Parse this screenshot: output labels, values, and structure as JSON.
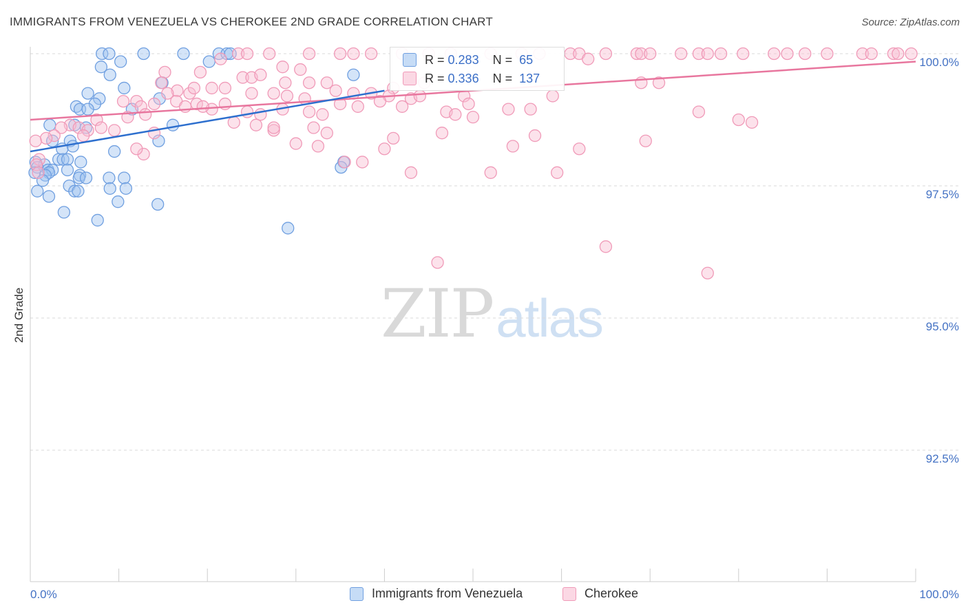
{
  "title": "IMMIGRANTS FROM VENEZUELA VS CHEROKEE 2ND GRADE CORRELATION CHART",
  "source": "Source: ZipAtlas.com",
  "watermark": {
    "zip": "ZIP",
    "atlas": "atlas"
  },
  "legend_stats": {
    "row1": {
      "r_label": "R =",
      "r_value": "0.283",
      "n_label": "N =",
      "n_value": "65"
    },
    "row2": {
      "r_label": "R =",
      "r_value": "0.336",
      "n_label": "N =",
      "n_value": "137"
    }
  },
  "colors": {
    "series1": "#6f9fe0",
    "series1_fill": "rgba(160,196,240,0.45)",
    "series1_line": "#2d6fce",
    "series2": "#f09ab8",
    "series2_fill": "rgba(248,190,210,0.45)",
    "series2_line": "#e8769e",
    "grid": "#d9d9d9",
    "tick": "#4472c4"
  },
  "chart_data": {
    "type": "scatter",
    "title": "IMMIGRANTS FROM VENEZUELA VS CHEROKEE 2ND GRADE CORRELATION CHART",
    "xlabel": "",
    "ylabel": "2nd Grade",
    "xlim": [
      0,
      100
    ],
    "ylim": [
      90.2,
      100.25
    ],
    "x_tick_labels": [
      "0.0%",
      "100.0%"
    ],
    "y_ticks": [
      92.5,
      95.0,
      97.5,
      100.0
    ],
    "y_tick_labels": [
      "92.5%",
      "95.0%",
      "97.5%",
      "100.0%"
    ],
    "grid": true,
    "legend": [
      "Immigrants from Venezuela",
      "Cherokee"
    ],
    "series": [
      {
        "name": "Immigrants from Venezuela",
        "r": 0.283,
        "n": 65,
        "trend": {
          "x": [
            0,
            40
          ],
          "y": [
            98.15,
            99.3
          ]
        },
        "points": [
          [
            8.1,
            100
          ],
          [
            8.9,
            100
          ],
          [
            12.8,
            100
          ],
          [
            17.3,
            100
          ],
          [
            21.3,
            100
          ],
          [
            22.2,
            100
          ],
          [
            22.6,
            100
          ],
          [
            10.2,
            99.85
          ],
          [
            20.2,
            99.85
          ],
          [
            8.0,
            99.75
          ],
          [
            9.0,
            99.6
          ],
          [
            36.5,
            99.6
          ],
          [
            14.9,
            99.45
          ],
          [
            10.6,
            99.35
          ],
          [
            6.5,
            99.25
          ],
          [
            7.8,
            99.15
          ],
          [
            14.6,
            99.15
          ],
          [
            7.3,
            99.05
          ],
          [
            5.2,
            99.0
          ],
          [
            5.6,
            98.95
          ],
          [
            6.5,
            98.95
          ],
          [
            11.5,
            98.95
          ],
          [
            2.2,
            98.65
          ],
          [
            5.0,
            98.65
          ],
          [
            16.1,
            98.65
          ],
          [
            6.3,
            98.6
          ],
          [
            4.5,
            98.35
          ],
          [
            2.5,
            98.35
          ],
          [
            14.5,
            98.35
          ],
          [
            4.8,
            98.25
          ],
          [
            3.6,
            98.2
          ],
          [
            9.5,
            98.15
          ],
          [
            3.2,
            98.0
          ],
          [
            3.7,
            98.0
          ],
          [
            4.2,
            98.0
          ],
          [
            5.7,
            97.95
          ],
          [
            0.6,
            97.95
          ],
          [
            1.6,
            97.9
          ],
          [
            0.8,
            97.85
          ],
          [
            2.0,
            97.8
          ],
          [
            2.5,
            97.8
          ],
          [
            4.2,
            97.8
          ],
          [
            0.5,
            97.75
          ],
          [
            2.1,
            97.75
          ],
          [
            5.6,
            97.7
          ],
          [
            1.7,
            97.7
          ],
          [
            5.5,
            97.65
          ],
          [
            6.3,
            97.65
          ],
          [
            8.9,
            97.65
          ],
          [
            10.6,
            97.65
          ],
          [
            1.4,
            97.6
          ],
          [
            4.4,
            97.5
          ],
          [
            9.0,
            97.45
          ],
          [
            10.8,
            97.45
          ],
          [
            5.0,
            97.4
          ],
          [
            5.4,
            97.4
          ],
          [
            0.8,
            97.4
          ],
          [
            2.1,
            97.3
          ],
          [
            9.9,
            97.2
          ],
          [
            14.4,
            97.15
          ],
          [
            3.8,
            97.0
          ],
          [
            7.6,
            96.85
          ],
          [
            29.1,
            96.7
          ],
          [
            35.4,
            97.95
          ],
          [
            35.1,
            97.85
          ]
        ]
      },
      {
        "name": "Cherokee",
        "r": 0.336,
        "n": 137,
        "trend": {
          "x": [
            0,
            100
          ],
          "y": [
            98.75,
            99.85
          ]
        },
        "points": [
          [
            23.5,
            100
          ],
          [
            24.5,
            100
          ],
          [
            27.0,
            100
          ],
          [
            31.5,
            100
          ],
          [
            35.0,
            100
          ],
          [
            36.5,
            100
          ],
          [
            38.5,
            100
          ],
          [
            42.0,
            100
          ],
          [
            45.0,
            100
          ],
          [
            47.5,
            100
          ],
          [
            52.0,
            100
          ],
          [
            55.5,
            100
          ],
          [
            57.5,
            100
          ],
          [
            61.0,
            100
          ],
          [
            62.0,
            100
          ],
          [
            65.0,
            100
          ],
          [
            68.5,
            100
          ],
          [
            69.0,
            100
          ],
          [
            70.0,
            100
          ],
          [
            73.5,
            100
          ],
          [
            75.5,
            100
          ],
          [
            76.5,
            100
          ],
          [
            78.0,
            100
          ],
          [
            80.5,
            100
          ],
          [
            84.0,
            100
          ],
          [
            85.5,
            100
          ],
          [
            87.5,
            100
          ],
          [
            90.0,
            100
          ],
          [
            94.0,
            100
          ],
          [
            95.0,
            100
          ],
          [
            97.5,
            100
          ],
          [
            98.0,
            100
          ],
          [
            99.5,
            100
          ],
          [
            21.5,
            99.9
          ],
          [
            63.0,
            99.9
          ],
          [
            28.5,
            99.75
          ],
          [
            30.5,
            99.7
          ],
          [
            15.2,
            99.65
          ],
          [
            19.2,
            99.65
          ],
          [
            24.0,
            99.55
          ],
          [
            28.8,
            99.45
          ],
          [
            31.5,
            99.45
          ],
          [
            33.5,
            99.45
          ],
          [
            14.8,
            99.45
          ],
          [
            69.0,
            99.45
          ],
          [
            71.0,
            99.45
          ],
          [
            34.5,
            99.3
          ],
          [
            36.5,
            99.25
          ],
          [
            38.5,
            99.25
          ],
          [
            41.0,
            99.35
          ],
          [
            16.6,
            99.3
          ],
          [
            18.0,
            99.25
          ],
          [
            20.5,
            99.35
          ],
          [
            22.0,
            99.35
          ],
          [
            25.0,
            99.25
          ],
          [
            27.5,
            99.25
          ],
          [
            29.0,
            99.2
          ],
          [
            31.0,
            99.15
          ],
          [
            40.5,
            99.2
          ],
          [
            43.0,
            99.15
          ],
          [
            44.0,
            99.2
          ],
          [
            49.0,
            99.2
          ],
          [
            59.0,
            99.2
          ],
          [
            10.5,
            99.1
          ],
          [
            12.0,
            99.1
          ],
          [
            14.0,
            99.05
          ],
          [
            12.5,
            99.0
          ],
          [
            16.5,
            99.1
          ],
          [
            17.5,
            99.0
          ],
          [
            18.8,
            99.05
          ],
          [
            20.5,
            98.95
          ],
          [
            22.0,
            99.05
          ],
          [
            24.5,
            98.9
          ],
          [
            26.0,
            98.85
          ],
          [
            28.5,
            98.95
          ],
          [
            31.5,
            98.9
          ],
          [
            35.0,
            99.05
          ],
          [
            37.0,
            99.0
          ],
          [
            39.5,
            99.1
          ],
          [
            42.0,
            99.0
          ],
          [
            47.0,
            98.9
          ],
          [
            48.0,
            98.85
          ],
          [
            50.0,
            98.8
          ],
          [
            56.5,
            98.95
          ],
          [
            75.5,
            98.9
          ],
          [
            80.0,
            98.75
          ],
          [
            81.5,
            98.7
          ],
          [
            11.0,
            98.8
          ],
          [
            7.5,
            98.75
          ],
          [
            8.0,
            98.6
          ],
          [
            9.5,
            98.55
          ],
          [
            4.5,
            98.65
          ],
          [
            5.5,
            98.6
          ],
          [
            6.5,
            98.55
          ],
          [
            3.5,
            98.6
          ],
          [
            2.7,
            98.45
          ],
          [
            1.8,
            98.4
          ],
          [
            0.6,
            98.35
          ],
          [
            6.0,
            98.45
          ],
          [
            14.0,
            98.5
          ],
          [
            25.5,
            98.65
          ],
          [
            27.5,
            98.55
          ],
          [
            32.0,
            98.6
          ],
          [
            33.5,
            98.5
          ],
          [
            41.0,
            98.4
          ],
          [
            46.5,
            98.5
          ],
          [
            54.5,
            98.25
          ],
          [
            57.0,
            98.45
          ],
          [
            62.0,
            98.2
          ],
          [
            69.5,
            98.35
          ],
          [
            30.0,
            98.3
          ],
          [
            32.5,
            98.25
          ],
          [
            40.0,
            98.2
          ],
          [
            43.0,
            97.75
          ],
          [
            52.0,
            97.75
          ],
          [
            59.5,
            97.75
          ],
          [
            35.5,
            97.95
          ],
          [
            37.5,
            97.95
          ],
          [
            12.8,
            98.1
          ],
          [
            1.0,
            98.0
          ],
          [
            0.7,
            97.9
          ],
          [
            0.9,
            97.75
          ],
          [
            46.0,
            96.05
          ],
          [
            65.0,
            96.35
          ],
          [
            76.5,
            95.85
          ],
          [
            25.0,
            99.55
          ],
          [
            44.5,
            99.45
          ],
          [
            27.5,
            98.6
          ],
          [
            33.0,
            98.85
          ],
          [
            15.5,
            99.25
          ],
          [
            49.5,
            99.05
          ],
          [
            54.0,
            98.95
          ],
          [
            18.5,
            99.35
          ],
          [
            13.0,
            98.85
          ],
          [
            19.5,
            99.0
          ],
          [
            26.0,
            99.6
          ],
          [
            23.0,
            98.7
          ],
          [
            12.0,
            98.2
          ]
        ]
      }
    ]
  },
  "legend_bottom": {
    "item1": "Immigrants from Venezuela",
    "item2": "Cherokee"
  },
  "axes": {
    "x_left_label": "0.0%",
    "x_right_label": "100.0%"
  }
}
